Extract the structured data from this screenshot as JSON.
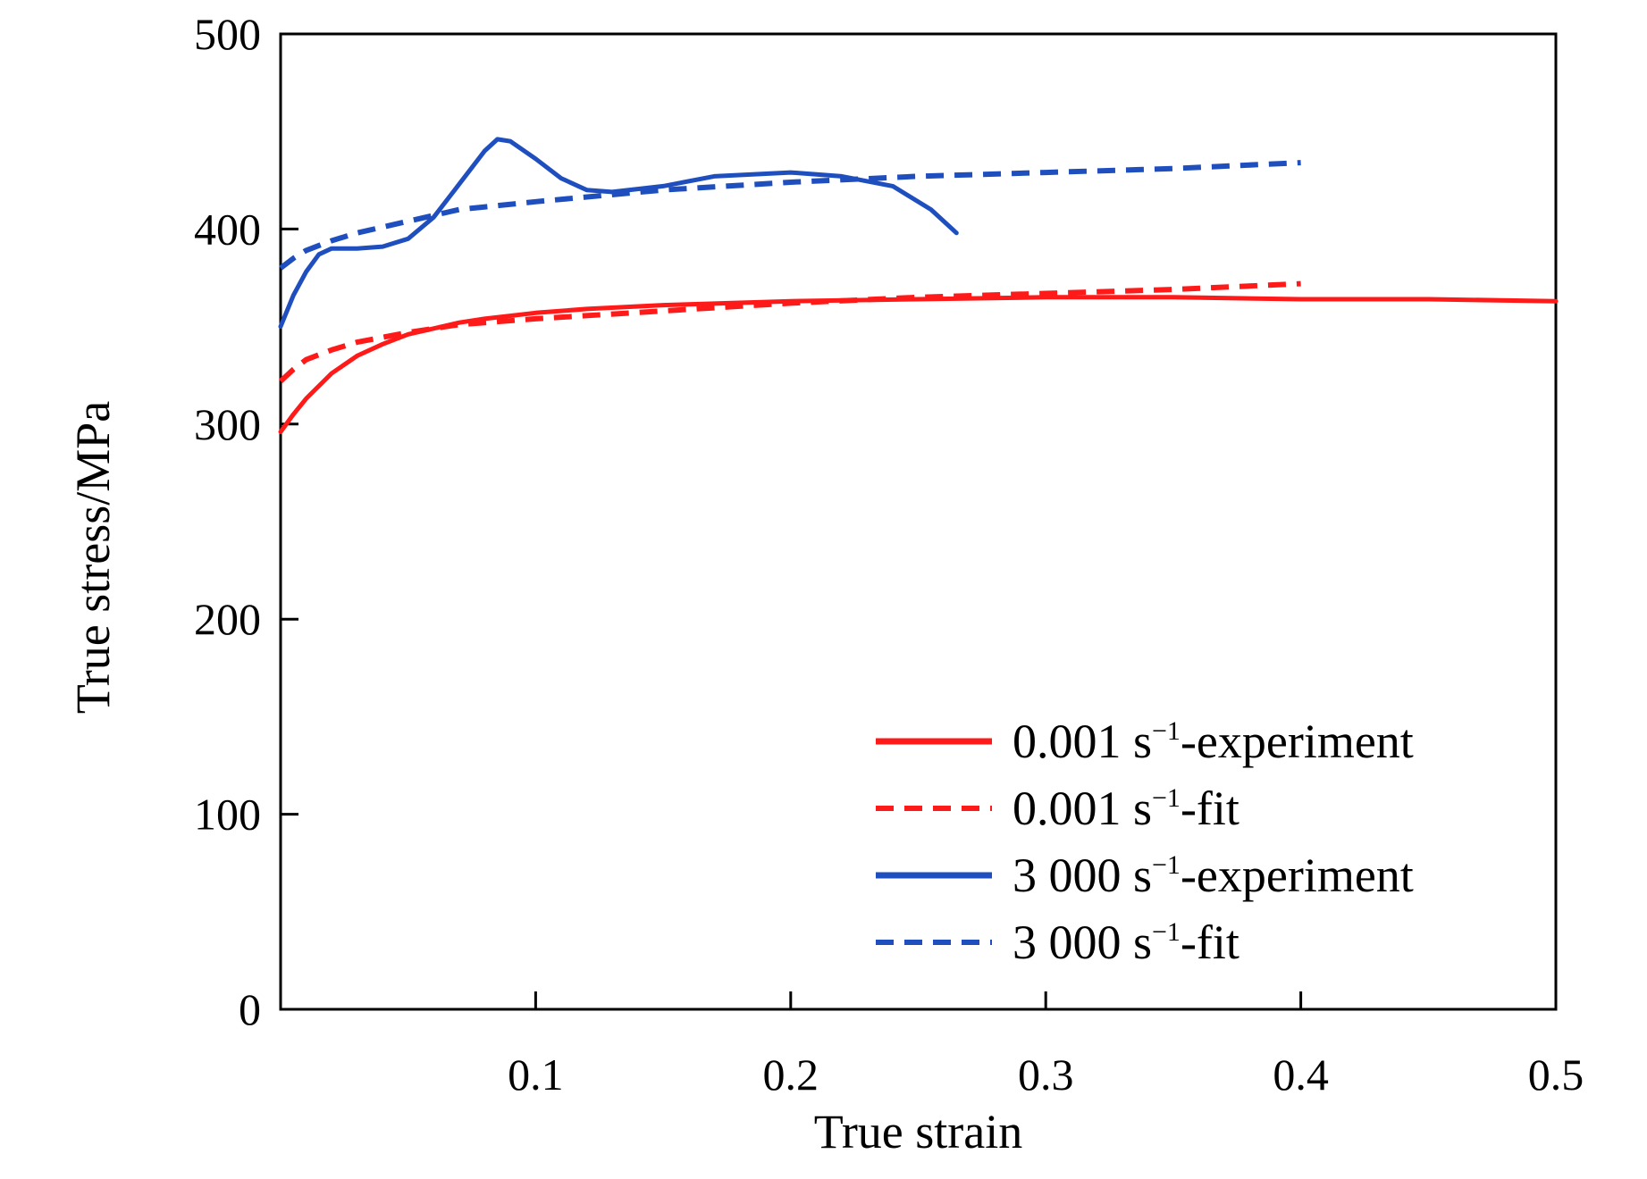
{
  "chart_data": {
    "type": "line",
    "title": "",
    "xlabel": "True strain",
    "ylabel": "True stress/MPa",
    "xlim": [
      0,
      0.5
    ],
    "ylim": [
      0,
      500
    ],
    "x_ticks": [
      {
        "value": 0.1,
        "label": "0.1"
      },
      {
        "value": 0.2,
        "label": "0.2"
      },
      {
        "value": 0.3,
        "label": "0.3"
      },
      {
        "value": 0.4,
        "label": "0.4"
      },
      {
        "value": 0.5,
        "label": "0.5"
      }
    ],
    "y_ticks": [
      {
        "value": 0,
        "label": "0"
      },
      {
        "value": 100,
        "label": "100"
      },
      {
        "value": 200,
        "label": "200"
      },
      {
        "value": 300,
        "label": "300"
      },
      {
        "value": 400,
        "label": "400"
      },
      {
        "value": 500,
        "label": "500"
      }
    ],
    "grid": false,
    "legend_position": "bottom-right",
    "series": [
      {
        "name_prefix": "0.001 s",
        "name_sup": "−1",
        "name_suffix": "-experiment",
        "color": "#ff1a1a",
        "dash": "solid",
        "points": [
          [
            0.0,
            296
          ],
          [
            0.005,
            305
          ],
          [
            0.01,
            313
          ],
          [
            0.02,
            326
          ],
          [
            0.03,
            335
          ],
          [
            0.04,
            341
          ],
          [
            0.05,
            346
          ],
          [
            0.06,
            349
          ],
          [
            0.07,
            352
          ],
          [
            0.08,
            354
          ],
          [
            0.1,
            357
          ],
          [
            0.12,
            359
          ],
          [
            0.15,
            361
          ],
          [
            0.2,
            363
          ],
          [
            0.25,
            364
          ],
          [
            0.3,
            365
          ],
          [
            0.35,
            365
          ],
          [
            0.4,
            364
          ],
          [
            0.45,
            364
          ],
          [
            0.5,
            363
          ]
        ]
      },
      {
        "name_prefix": "0.001 s",
        "name_sup": "−1",
        "name_suffix": "-fit",
        "color": "#ff1a1a",
        "dash": "dashed",
        "points": [
          [
            0.0,
            322
          ],
          [
            0.005,
            328
          ],
          [
            0.01,
            333
          ],
          [
            0.02,
            338
          ],
          [
            0.03,
            342
          ],
          [
            0.05,
            347
          ],
          [
            0.07,
            351
          ],
          [
            0.1,
            354
          ],
          [
            0.15,
            358
          ],
          [
            0.2,
            362
          ],
          [
            0.25,
            365
          ],
          [
            0.3,
            367
          ],
          [
            0.35,
            369
          ],
          [
            0.4,
            372
          ]
        ]
      },
      {
        "name_prefix": "3 000 s",
        "name_sup": "−1",
        "name_suffix": "-experiment",
        "color": "#1f4fbf",
        "dash": "solid",
        "points": [
          [
            0.0,
            350
          ],
          [
            0.005,
            366
          ],
          [
            0.01,
            378
          ],
          [
            0.015,
            387
          ],
          [
            0.02,
            390
          ],
          [
            0.03,
            390
          ],
          [
            0.04,
            391
          ],
          [
            0.05,
            395
          ],
          [
            0.06,
            406
          ],
          [
            0.07,
            423
          ],
          [
            0.08,
            440
          ],
          [
            0.085,
            446
          ],
          [
            0.09,
            445
          ],
          [
            0.1,
            436
          ],
          [
            0.11,
            426
          ],
          [
            0.12,
            420
          ],
          [
            0.13,
            419
          ],
          [
            0.15,
            422
          ],
          [
            0.17,
            427
          ],
          [
            0.2,
            429
          ],
          [
            0.22,
            427
          ],
          [
            0.24,
            422
          ],
          [
            0.255,
            410
          ],
          [
            0.265,
            398
          ]
        ]
      },
      {
        "name_prefix": "3 000 s",
        "name_sup": "−1",
        "name_suffix": "-fit",
        "color": "#1f4fbf",
        "dash": "dashed",
        "points": [
          [
            0.0,
            380
          ],
          [
            0.005,
            385
          ],
          [
            0.01,
            389
          ],
          [
            0.02,
            394
          ],
          [
            0.03,
            398
          ],
          [
            0.05,
            404
          ],
          [
            0.07,
            410
          ],
          [
            0.1,
            414
          ],
          [
            0.15,
            420
          ],
          [
            0.2,
            424
          ],
          [
            0.25,
            427
          ],
          [
            0.3,
            429
          ],
          [
            0.35,
            431
          ],
          [
            0.4,
            434
          ]
        ]
      }
    ]
  }
}
